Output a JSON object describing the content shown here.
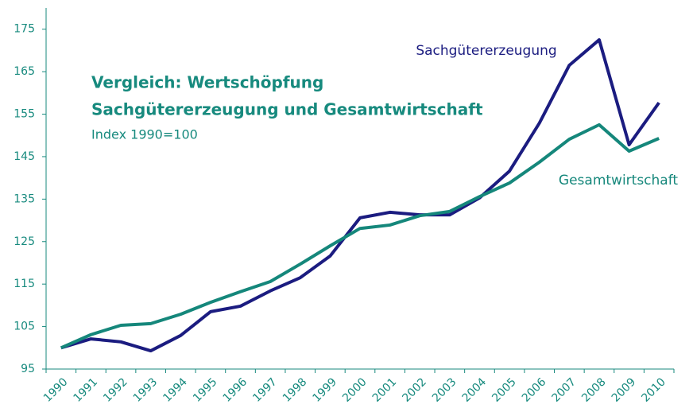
{
  "chart_data": {
    "type": "line",
    "title": [
      "Vergleich: Wertschöpfung",
      "Sachgütererzeugung und Gesamtwirtschaft"
    ],
    "subtitle": "Index 1990=100",
    "categories": [
      "1990",
      "1991",
      "1992",
      "1993",
      "1994",
      "1995",
      "1996",
      "1997",
      "1998",
      "1999",
      "2000",
      "2001",
      "2002",
      "2003",
      "2004",
      "2005",
      "2006",
      "2007",
      "2008",
      "2009",
      "2010"
    ],
    "series": [
      {
        "name": "Sachgütererzeugung",
        "color": "#1b1c80",
        "values": [
          100,
          102.1,
          101.4,
          99.3,
          102.9,
          108.5,
          109.8,
          113.4,
          116.5,
          121.6,
          130.6,
          131.9,
          131.3,
          131.3,
          135.3,
          141.6,
          152.9,
          166.5,
          172.5,
          147.8,
          157.7
        ]
      },
      {
        "name": "Gesamtwirtschaft",
        "color": "#15877b",
        "values": [
          100,
          103.1,
          105.3,
          105.7,
          107.9,
          110.7,
          113.2,
          115.6,
          119.7,
          124.0,
          128.1,
          128.9,
          131.1,
          132.1,
          135.6,
          138.8,
          143.7,
          149.1,
          152.5,
          146.3,
          149.3
        ]
      }
    ],
    "ylim": [
      95,
      180
    ],
    "yticks": [
      95,
      105,
      115,
      125,
      135,
      145,
      155,
      165,
      175
    ],
    "grid": false
  }
}
